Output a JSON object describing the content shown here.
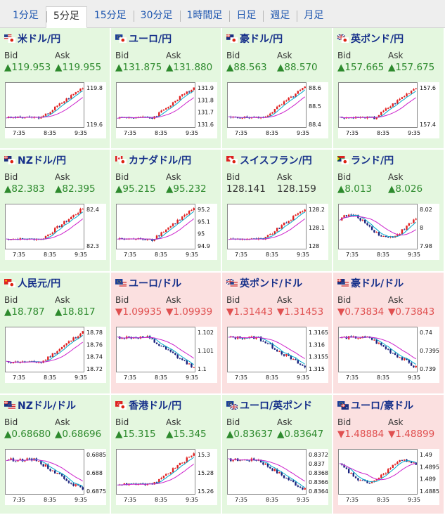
{
  "tabs": [
    {
      "label": "1分足",
      "active": false
    },
    {
      "label": "5分足",
      "active": true
    },
    {
      "label": "15分足",
      "active": false
    },
    {
      "label": "30分足",
      "active": false
    },
    {
      "label": "1時間足",
      "active": false
    },
    {
      "label": "日足",
      "active": false
    },
    {
      "label": "週足",
      "active": false
    },
    {
      "label": "月足",
      "active": false
    }
  ],
  "labels": {
    "bid": "Bid",
    "ask": "Ask"
  },
  "pairs": [
    {
      "name": "米ドル/円",
      "flags": [
        "us",
        "jp"
      ],
      "dir": "up",
      "bid": "▲119.953",
      "ask": "▲119.955",
      "yticks": [
        "119.8",
        "119.6"
      ],
      "xticks": [
        "7:35",
        "8:35",
        "9:35"
      ],
      "trend": "up"
    },
    {
      "name": "ユーロ/円",
      "flags": [
        "eu",
        "jp"
      ],
      "dir": "up",
      "bid": "▲131.875",
      "ask": "▲131.880",
      "yticks": [
        "131.9",
        "131.8",
        "131.7",
        "131.6"
      ],
      "xticks": [
        "7:35",
        "8:35",
        "9:35"
      ],
      "trend": "up"
    },
    {
      "name": "豪ドル/円",
      "flags": [
        "au",
        "jp"
      ],
      "dir": "up",
      "bid": "▲88.563",
      "ask": "▲88.570",
      "yticks": [
        "88.6",
        "88.5",
        "88.4"
      ],
      "xticks": [
        "7:35",
        "8:35",
        "9:35"
      ],
      "trend": "up"
    },
    {
      "name": "英ポンド/円",
      "flags": [
        "gb",
        "jp"
      ],
      "dir": "up",
      "bid": "▲157.665",
      "ask": "▲157.675",
      "yticks": [
        "157.6",
        "157.4"
      ],
      "xticks": [
        "7:35",
        "8:35",
        "9:35"
      ],
      "trend": "up"
    },
    {
      "name": "NZドル/円",
      "flags": [
        "nz",
        "jp"
      ],
      "dir": "up",
      "bid": "▲82.383",
      "ask": "▲82.395",
      "yticks": [
        "82.4",
        "82.3"
      ],
      "xticks": [
        "7:35",
        "8:35",
        "9:35"
      ],
      "trend": "up"
    },
    {
      "name": "カナダドル/円",
      "flags": [
        "ca",
        "jp"
      ],
      "dir": "up",
      "bid": "▲95.215",
      "ask": "▲95.232",
      "yticks": [
        "95.2",
        "95.1",
        "95",
        "94.9"
      ],
      "xticks": [
        "7:35",
        "8:35",
        "9:35"
      ],
      "trend": "up"
    },
    {
      "name": "スイスフラン/円",
      "flags": [
        "ch",
        "jp"
      ],
      "dir": "none",
      "bid": "128.141",
      "ask": "128.159",
      "yticks": [
        "128.2",
        "128.1",
        "128"
      ],
      "xticks": [
        "7:35",
        "8:35",
        "9:35"
      ],
      "trend": "up"
    },
    {
      "name": "ランド/円",
      "flags": [
        "za",
        "jp"
      ],
      "dir": "up",
      "bid": "▲8.013",
      "ask": "▲8.026",
      "yticks": [
        "8.02",
        "8",
        "7.98"
      ],
      "xticks": [
        "7:35",
        "8:35",
        "9:35"
      ],
      "trend": "wave"
    },
    {
      "name": "人民元/円",
      "flags": [
        "cn",
        "jp"
      ],
      "dir": "up",
      "bid": "▲18.787",
      "ask": "▲18.817",
      "yticks": [
        "18.78",
        "18.76",
        "18.74",
        "18.72"
      ],
      "xticks": [
        "7:35",
        "8:35",
        "9:35"
      ],
      "trend": "up"
    },
    {
      "name": "ユーロ/ドル",
      "flags": [
        "eu",
        "us"
      ],
      "dir": "down",
      "bid": "▼1.09935",
      "ask": "▼1.09939",
      "yticks": [
        "1.102",
        "1.101",
        "1.1"
      ],
      "xticks": [
        "7:35",
        "8:35",
        "9:35"
      ],
      "trend": "down"
    },
    {
      "name": "英ポンド/ドル",
      "flags": [
        "gb",
        "us"
      ],
      "dir": "down",
      "bid": "▼1.31443",
      "ask": "▼1.31453",
      "yticks": [
        "1.3165",
        "1.316",
        "1.3155",
        "1.315"
      ],
      "xticks": [
        "7:35",
        "8:35",
        "9:35"
      ],
      "trend": "down"
    },
    {
      "name": "豪ドル/ドル",
      "flags": [
        "au",
        "us"
      ],
      "dir": "down",
      "bid": "▼0.73834",
      "ask": "▼0.73843",
      "yticks": [
        "0.74",
        "0.7395",
        "0.739"
      ],
      "xticks": [
        "7:35",
        "8:35",
        "9:35"
      ],
      "trend": "down"
    },
    {
      "name": "NZドル/ドル",
      "flags": [
        "nz",
        "us"
      ],
      "dir": "up",
      "bid": "▲0.68680",
      "ask": "▲0.68696",
      "yticks": [
        "0.6885",
        "0.688",
        "0.6875"
      ],
      "xticks": [
        "7:35",
        "8:35",
        "9:35"
      ],
      "trend": "down"
    },
    {
      "name": "香港ドル/円",
      "flags": [
        "hk",
        "jp"
      ],
      "dir": "up",
      "bid": "▲15.315",
      "ask": "▲15.345",
      "yticks": [
        "15.3",
        "15.28",
        "15.26"
      ],
      "xticks": [
        "7:35",
        "8:35",
        "9:35"
      ],
      "trend": "up"
    },
    {
      "name": "ユーロ/英ポンド",
      "flags": [
        "eu",
        "gb"
      ],
      "dir": "up",
      "bid": "▲0.83637",
      "ask": "▲0.83647",
      "yticks": [
        "0.8372",
        "0.837",
        "0.8368",
        "0.8366",
        "0.8364"
      ],
      "xticks": [
        "7:35",
        "8:35",
        "9:35"
      ],
      "trend": "down"
    },
    {
      "name": "ユーロ/豪ドル",
      "flags": [
        "eu",
        "au"
      ],
      "dir": "down",
      "bid": "▼1.48884",
      "ask": "▼1.48899",
      "yticks": [
        "1.49",
        "1.4895",
        "1.489",
        "1.4885"
      ],
      "xticks": [
        "7:35",
        "8:35",
        "9:35"
      ],
      "trend": "wave"
    }
  ]
}
